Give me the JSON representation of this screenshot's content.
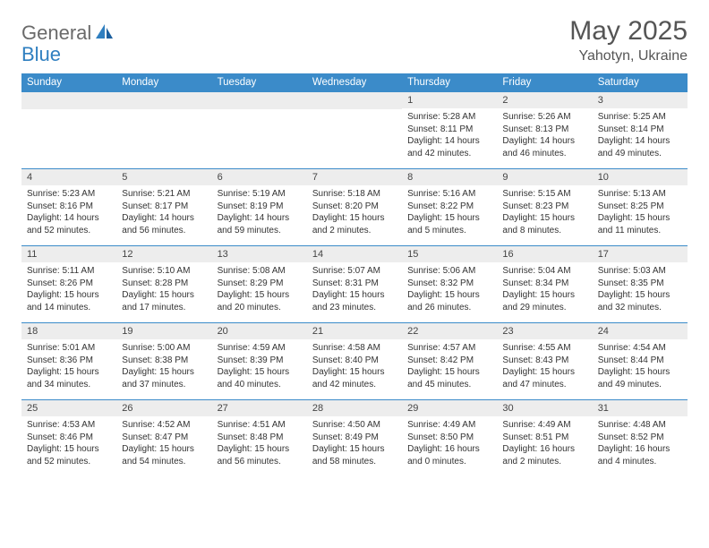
{
  "logo": {
    "general": "General",
    "blue": "Blue"
  },
  "title": "May 2025",
  "location": "Yahotyn, Ukraine",
  "colors": {
    "header_bg": "#3b8bc9",
    "header_text": "#ffffff",
    "daynum_bg": "#ededed",
    "border": "#3b8bc9",
    "logo_blue": "#2f7fc0",
    "logo_gray": "#6a6a6a"
  },
  "days_of_week": [
    "Sunday",
    "Monday",
    "Tuesday",
    "Wednesday",
    "Thursday",
    "Friday",
    "Saturday"
  ],
  "weeks": [
    [
      null,
      null,
      null,
      null,
      {
        "n": "1",
        "sr": "5:28 AM",
        "ss": "8:11 PM",
        "dl": "14 hours and 42 minutes."
      },
      {
        "n": "2",
        "sr": "5:26 AM",
        "ss": "8:13 PM",
        "dl": "14 hours and 46 minutes."
      },
      {
        "n": "3",
        "sr": "5:25 AM",
        "ss": "8:14 PM",
        "dl": "14 hours and 49 minutes."
      }
    ],
    [
      {
        "n": "4",
        "sr": "5:23 AM",
        "ss": "8:16 PM",
        "dl": "14 hours and 52 minutes."
      },
      {
        "n": "5",
        "sr": "5:21 AM",
        "ss": "8:17 PM",
        "dl": "14 hours and 56 minutes."
      },
      {
        "n": "6",
        "sr": "5:19 AM",
        "ss": "8:19 PM",
        "dl": "14 hours and 59 minutes."
      },
      {
        "n": "7",
        "sr": "5:18 AM",
        "ss": "8:20 PM",
        "dl": "15 hours and 2 minutes."
      },
      {
        "n": "8",
        "sr": "5:16 AM",
        "ss": "8:22 PM",
        "dl": "15 hours and 5 minutes."
      },
      {
        "n": "9",
        "sr": "5:15 AM",
        "ss": "8:23 PM",
        "dl": "15 hours and 8 minutes."
      },
      {
        "n": "10",
        "sr": "5:13 AM",
        "ss": "8:25 PM",
        "dl": "15 hours and 11 minutes."
      }
    ],
    [
      {
        "n": "11",
        "sr": "5:11 AM",
        "ss": "8:26 PM",
        "dl": "15 hours and 14 minutes."
      },
      {
        "n": "12",
        "sr": "5:10 AM",
        "ss": "8:28 PM",
        "dl": "15 hours and 17 minutes."
      },
      {
        "n": "13",
        "sr": "5:08 AM",
        "ss": "8:29 PM",
        "dl": "15 hours and 20 minutes."
      },
      {
        "n": "14",
        "sr": "5:07 AM",
        "ss": "8:31 PM",
        "dl": "15 hours and 23 minutes."
      },
      {
        "n": "15",
        "sr": "5:06 AM",
        "ss": "8:32 PM",
        "dl": "15 hours and 26 minutes."
      },
      {
        "n": "16",
        "sr": "5:04 AM",
        "ss": "8:34 PM",
        "dl": "15 hours and 29 minutes."
      },
      {
        "n": "17",
        "sr": "5:03 AM",
        "ss": "8:35 PM",
        "dl": "15 hours and 32 minutes."
      }
    ],
    [
      {
        "n": "18",
        "sr": "5:01 AM",
        "ss": "8:36 PM",
        "dl": "15 hours and 34 minutes."
      },
      {
        "n": "19",
        "sr": "5:00 AM",
        "ss": "8:38 PM",
        "dl": "15 hours and 37 minutes."
      },
      {
        "n": "20",
        "sr": "4:59 AM",
        "ss": "8:39 PM",
        "dl": "15 hours and 40 minutes."
      },
      {
        "n": "21",
        "sr": "4:58 AM",
        "ss": "8:40 PM",
        "dl": "15 hours and 42 minutes."
      },
      {
        "n": "22",
        "sr": "4:57 AM",
        "ss": "8:42 PM",
        "dl": "15 hours and 45 minutes."
      },
      {
        "n": "23",
        "sr": "4:55 AM",
        "ss": "8:43 PM",
        "dl": "15 hours and 47 minutes."
      },
      {
        "n": "24",
        "sr": "4:54 AM",
        "ss": "8:44 PM",
        "dl": "15 hours and 49 minutes."
      }
    ],
    [
      {
        "n": "25",
        "sr": "4:53 AM",
        "ss": "8:46 PM",
        "dl": "15 hours and 52 minutes."
      },
      {
        "n": "26",
        "sr": "4:52 AM",
        "ss": "8:47 PM",
        "dl": "15 hours and 54 minutes."
      },
      {
        "n": "27",
        "sr": "4:51 AM",
        "ss": "8:48 PM",
        "dl": "15 hours and 56 minutes."
      },
      {
        "n": "28",
        "sr": "4:50 AM",
        "ss": "8:49 PM",
        "dl": "15 hours and 58 minutes."
      },
      {
        "n": "29",
        "sr": "4:49 AM",
        "ss": "8:50 PM",
        "dl": "16 hours and 0 minutes."
      },
      {
        "n": "30",
        "sr": "4:49 AM",
        "ss": "8:51 PM",
        "dl": "16 hours and 2 minutes."
      },
      {
        "n": "31",
        "sr": "4:48 AM",
        "ss": "8:52 PM",
        "dl": "16 hours and 4 minutes."
      }
    ]
  ],
  "labels": {
    "sunrise": "Sunrise: ",
    "sunset": "Sunset: ",
    "daylight": "Daylight: "
  }
}
